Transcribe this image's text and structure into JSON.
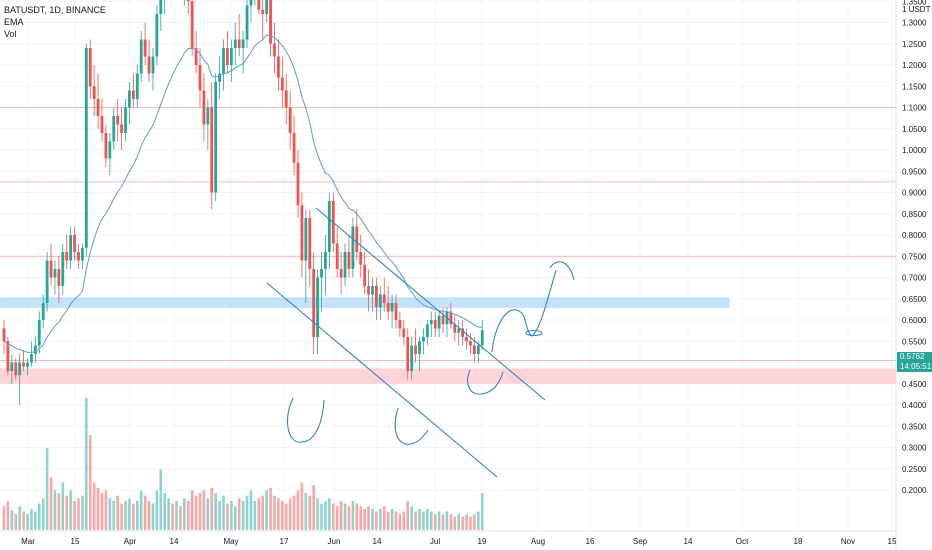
{
  "header": {
    "symbol_line": "BATUSDT, 1D, BINANCE",
    "indicator_1": "EMA",
    "indicator_2": "Vol"
  },
  "price_axis": {
    "currency_label": "1 USDT",
    "ticks": [
      "1.3500",
      "1.3000",
      "1.2500",
      "1.2000",
      "1.1500",
      "1.1000",
      "1.0500",
      "1.0000",
      "0.9500",
      "0.9000",
      "0.8500",
      "0.8000",
      "0.7500",
      "0.7000",
      "0.6500",
      "0.6000",
      "0.5500",
      "0.5000",
      "0.4500",
      "0.4000",
      "0.3500",
      "0.3000",
      "0.2500",
      "0.2000"
    ],
    "current_price": "0.5762",
    "countdown": "14:05:51"
  },
  "time_axis": {
    "labels": [
      "Mar",
      "15",
      "Apr",
      "14",
      "May",
      "17",
      "Jun",
      "14",
      "Jul",
      "19",
      "Aug",
      "16",
      "Sep",
      "14",
      "Oct",
      "18",
      "Nov",
      "15"
    ]
  },
  "colors": {
    "up": "#26a69a",
    "down": "#ef5350",
    "ema": "#5b9bd5",
    "drawing": "#2e86c1",
    "resistance_zone": "#bbdefb",
    "support_zone": "#ffcdd2",
    "horizontal_line": "#f4a6a6"
  },
  "chart_data": {
    "type": "candlestick",
    "symbol": "BATUSDT",
    "interval": "1D",
    "exchange": "BINANCE",
    "y_range": [
      0.18,
      1.4
    ],
    "x_labels": [
      "Mar",
      "15",
      "Apr",
      "14",
      "May",
      "17",
      "Jun",
      "14",
      "Jul",
      "19",
      "Aug",
      "16",
      "Sep",
      "14",
      "Oct",
      "18",
      "Nov",
      "15"
    ],
    "horizontal_lines": [
      1.1,
      0.925,
      0.75,
      0.505
    ],
    "zones": [
      {
        "from": 0.63,
        "to": 0.652
      },
      {
        "from": 0.45,
        "to": 0.486
      }
    ],
    "candles_ohlc": [
      [
        0.58,
        0.6,
        0.52,
        0.55
      ],
      [
        0.55,
        0.56,
        0.47,
        0.48
      ],
      [
        0.48,
        0.52,
        0.45,
        0.5
      ],
      [
        0.5,
        0.51,
        0.46,
        0.47
      ],
      [
        0.47,
        0.52,
        0.4,
        0.5
      ],
      [
        0.5,
        0.53,
        0.48,
        0.49
      ],
      [
        0.49,
        0.51,
        0.47,
        0.5
      ],
      [
        0.5,
        0.55,
        0.49,
        0.52
      ],
      [
        0.52,
        0.56,
        0.5,
        0.54
      ],
      [
        0.54,
        0.62,
        0.52,
        0.6
      ],
      [
        0.6,
        0.66,
        0.58,
        0.64
      ],
      [
        0.64,
        0.76,
        0.62,
        0.74
      ],
      [
        0.74,
        0.78,
        0.68,
        0.7
      ],
      [
        0.7,
        0.74,
        0.66,
        0.72
      ],
      [
        0.72,
        0.75,
        0.64,
        0.68
      ],
      [
        0.68,
        0.78,
        0.66,
        0.76
      ],
      [
        0.76,
        0.8,
        0.72,
        0.74
      ],
      [
        0.74,
        0.82,
        0.72,
        0.8
      ],
      [
        0.8,
        0.82,
        0.74,
        0.76
      ],
      [
        0.76,
        0.78,
        0.72,
        0.74
      ],
      [
        0.74,
        0.78,
        0.72,
        0.77
      ],
      [
        0.77,
        1.25,
        0.75,
        1.24
      ],
      [
        1.24,
        1.26,
        1.12,
        1.15
      ],
      [
        1.15,
        1.2,
        1.08,
        1.12
      ],
      [
        1.12,
        1.18,
        1.05,
        1.08
      ],
      [
        1.08,
        1.12,
        1.02,
        1.04
      ],
      [
        1.04,
        1.06,
        0.96,
        0.98
      ],
      [
        0.98,
        1.04,
        0.94,
        1.02
      ],
      [
        1.02,
        1.1,
        1.0,
        1.08
      ],
      [
        1.08,
        1.12,
        1.02,
        1.06
      ],
      [
        1.06,
        1.1,
        1.0,
        1.04
      ],
      [
        1.04,
        1.12,
        1.02,
        1.1
      ],
      [
        1.1,
        1.16,
        1.06,
        1.14
      ],
      [
        1.14,
        1.18,
        1.1,
        1.12
      ],
      [
        1.12,
        1.2,
        1.1,
        1.18
      ],
      [
        1.18,
        1.28,
        1.16,
        1.26
      ],
      [
        1.26,
        1.3,
        1.2,
        1.22
      ],
      [
        1.22,
        1.26,
        1.16,
        1.18
      ],
      [
        1.18,
        1.24,
        1.14,
        1.22
      ],
      [
        1.22,
        1.34,
        1.2,
        1.32
      ],
      [
        1.32,
        1.38,
        1.28,
        1.36
      ],
      [
        1.36,
        1.4,
        1.32,
        1.38
      ],
      [
        1.38,
        1.4,
        1.36,
        1.39
      ],
      [
        1.39,
        1.4,
        1.37,
        1.38
      ],
      [
        1.38,
        1.4,
        1.36,
        1.39
      ],
      [
        1.39,
        1.4,
        1.36,
        1.37
      ],
      [
        1.37,
        1.4,
        1.34,
        1.39
      ],
      [
        1.39,
        1.4,
        1.32,
        1.35
      ],
      [
        1.35,
        1.38,
        1.22,
        1.24
      ],
      [
        1.24,
        1.28,
        1.18,
        1.2
      ],
      [
        1.2,
        1.24,
        1.1,
        1.14
      ],
      [
        1.14,
        1.18,
        1.02,
        1.06
      ],
      [
        1.06,
        1.12,
        1.0,
        1.1
      ],
      [
        1.1,
        1.16,
        0.86,
        0.9
      ],
      [
        0.9,
        1.18,
        0.88,
        1.16
      ],
      [
        1.16,
        1.22,
        1.12,
        1.18
      ],
      [
        1.18,
        1.26,
        1.14,
        1.24
      ],
      [
        1.24,
        1.28,
        1.18,
        1.2
      ],
      [
        1.2,
        1.26,
        1.16,
        1.24
      ],
      [
        1.24,
        1.3,
        1.2,
        1.26
      ],
      [
        1.26,
        1.32,
        1.22,
        1.24
      ],
      [
        1.24,
        1.28,
        1.18,
        1.26
      ],
      [
        1.26,
        1.36,
        1.24,
        1.34
      ],
      [
        1.34,
        1.4,
        1.3,
        1.38
      ],
      [
        1.38,
        1.4,
        1.34,
        1.39
      ],
      [
        1.39,
        1.4,
        1.32,
        1.33
      ],
      [
        1.33,
        1.36,
        1.26,
        1.32
      ],
      [
        1.32,
        1.4,
        1.3,
        1.39
      ],
      [
        1.39,
        1.4,
        1.22,
        1.25
      ],
      [
        1.25,
        1.3,
        1.18,
        1.22
      ],
      [
        1.22,
        1.26,
        1.14,
        1.17
      ],
      [
        1.17,
        1.22,
        1.1,
        1.14
      ],
      [
        1.14,
        1.18,
        1.06,
        1.1
      ],
      [
        1.1,
        1.14,
        1.0,
        1.04
      ],
      [
        1.04,
        1.08,
        0.94,
        0.97
      ],
      [
        0.97,
        1.0,
        0.84,
        0.87
      ],
      [
        0.87,
        0.9,
        0.7,
        0.74
      ],
      [
        0.74,
        0.86,
        0.64,
        0.84
      ],
      [
        0.84,
        0.86,
        0.68,
        0.72
      ],
      [
        0.72,
        0.76,
        0.52,
        0.56
      ],
      [
        0.56,
        0.72,
        0.52,
        0.7
      ],
      [
        0.7,
        0.76,
        0.62,
        0.72
      ],
      [
        0.72,
        0.8,
        0.66,
        0.76
      ],
      [
        0.76,
        0.9,
        0.72,
        0.88
      ],
      [
        0.88,
        0.9,
        0.76,
        0.78
      ],
      [
        0.78,
        0.82,
        0.7,
        0.72
      ],
      [
        0.72,
        0.76,
        0.66,
        0.7
      ],
      [
        0.7,
        0.78,
        0.68,
        0.76
      ],
      [
        0.76,
        0.8,
        0.7,
        0.72
      ],
      [
        0.72,
        0.84,
        0.7,
        0.82
      ],
      [
        0.82,
        0.86,
        0.74,
        0.76
      ],
      [
        0.76,
        0.8,
        0.7,
        0.73
      ],
      [
        0.73,
        0.76,
        0.66,
        0.68
      ],
      [
        0.68,
        0.72,
        0.62,
        0.66
      ],
      [
        0.66,
        0.7,
        0.62,
        0.68
      ],
      [
        0.68,
        0.7,
        0.6,
        0.63
      ],
      [
        0.63,
        0.68,
        0.6,
        0.66
      ],
      [
        0.66,
        0.7,
        0.62,
        0.64
      ],
      [
        0.64,
        0.68,
        0.6,
        0.62
      ],
      [
        0.62,
        0.66,
        0.58,
        0.64
      ],
      [
        0.64,
        0.66,
        0.58,
        0.6
      ],
      [
        0.6,
        0.62,
        0.56,
        0.58
      ],
      [
        0.58,
        0.6,
        0.54,
        0.56
      ],
      [
        0.56,
        0.58,
        0.46,
        0.48
      ],
      [
        0.48,
        0.56,
        0.46,
        0.54
      ],
      [
        0.54,
        0.58,
        0.5,
        0.52
      ],
      [
        0.52,
        0.56,
        0.48,
        0.55
      ],
      [
        0.55,
        0.58,
        0.52,
        0.56
      ],
      [
        0.56,
        0.6,
        0.54,
        0.59
      ],
      [
        0.59,
        0.62,
        0.56,
        0.6
      ],
      [
        0.6,
        0.62,
        0.56,
        0.58
      ],
      [
        0.58,
        0.62,
        0.56,
        0.61
      ],
      [
        0.61,
        0.63,
        0.57,
        0.59
      ],
      [
        0.59,
        0.63,
        0.56,
        0.62
      ],
      [
        0.62,
        0.64,
        0.58,
        0.59
      ],
      [
        0.59,
        0.61,
        0.55,
        0.57
      ],
      [
        0.57,
        0.6,
        0.54,
        0.58
      ],
      [
        0.58,
        0.6,
        0.54,
        0.56
      ],
      [
        0.56,
        0.58,
        0.53,
        0.55
      ],
      [
        0.55,
        0.57,
        0.52,
        0.54
      ],
      [
        0.54,
        0.56,
        0.5,
        0.52
      ],
      [
        0.52,
        0.55,
        0.5,
        0.54
      ],
      [
        0.54,
        0.6,
        0.53,
        0.5762
      ]
    ],
    "volume": [
      0.18,
      0.22,
      0.15,
      0.12,
      0.18,
      0.14,
      0.12,
      0.16,
      0.14,
      0.2,
      0.24,
      0.62,
      0.4,
      0.3,
      0.28,
      0.36,
      0.26,
      0.3,
      0.22,
      0.24,
      0.26,
      1.0,
      0.72,
      0.36,
      0.32,
      0.28,
      0.3,
      0.24,
      0.22,
      0.26,
      0.2,
      0.22,
      0.24,
      0.2,
      0.22,
      0.3,
      0.26,
      0.22,
      0.2,
      0.3,
      0.46,
      0.28,
      0.24,
      0.2,
      0.22,
      0.18,
      0.24,
      0.22,
      0.3,
      0.26,
      0.28,
      0.3,
      0.24,
      0.32,
      0.28,
      0.22,
      0.26,
      0.2,
      0.22,
      0.18,
      0.24,
      0.22,
      0.26,
      0.3,
      0.22,
      0.24,
      0.26,
      0.3,
      0.32,
      0.26,
      0.24,
      0.22,
      0.2,
      0.24,
      0.26,
      0.3,
      0.36,
      0.28,
      0.26,
      0.34,
      0.24,
      0.2,
      0.22,
      0.24,
      0.2,
      0.18,
      0.22,
      0.2,
      0.18,
      0.22,
      0.2,
      0.18,
      0.16,
      0.18,
      0.16,
      0.14,
      0.16,
      0.18,
      0.14,
      0.16,
      0.14,
      0.12,
      0.14,
      0.22,
      0.18,
      0.14,
      0.16,
      0.14,
      0.16,
      0.14,
      0.12,
      0.14,
      0.12,
      0.14,
      0.12,
      0.1,
      0.12,
      0.1,
      0.12,
      0.1,
      0.12,
      0.14,
      0.28
    ]
  }
}
